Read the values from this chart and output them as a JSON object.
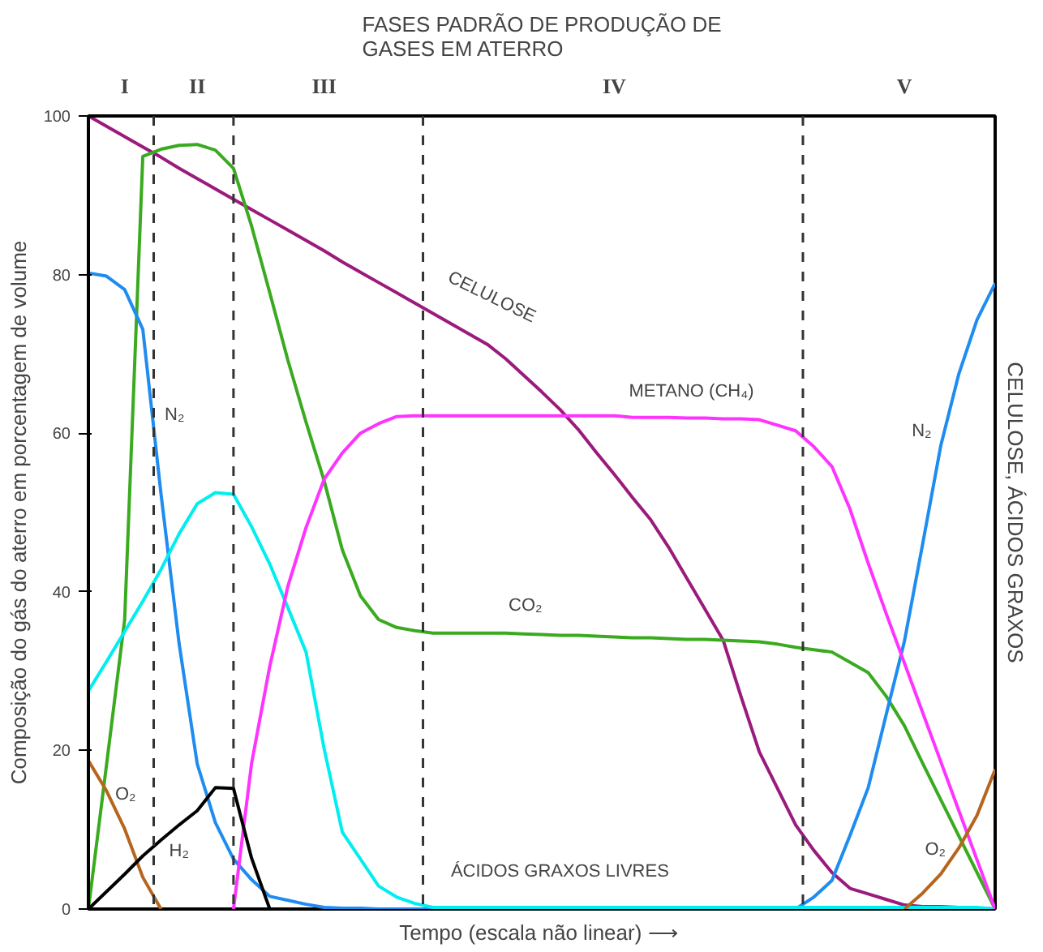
{
  "chart_data": {
    "type": "line",
    "title": "FASES PADRÃO DE PRODUÇÃO DE\nGASES EM ATERRO",
    "xlabel": "Tempo (escala não linear)  ⟶",
    "ylabel": "Composição do gás do aterro em porcentagem de volume",
    "y2label": "CELULOSE, ÁCIDOS GRAXOS",
    "categories": [
      null,
      null,
      "I",
      null,
      null,
      null,
      "II",
      null,
      null,
      null,
      null,
      null,
      null,
      "III",
      null,
      null,
      null,
      null,
      null,
      null,
      null,
      null,
      null,
      null,
      null,
      null,
      null,
      null,
      null,
      "IV",
      null,
      null,
      null,
      null,
      null,
      null,
      null,
      null,
      null,
      null,
      null,
      null,
      null,
      null,
      null,
      "V",
      null,
      null,
      null,
      null,
      null
    ],
    "ylim": [
      0,
      100
    ],
    "yticks": [
      0,
      20,
      40,
      60,
      80,
      100
    ],
    "marker": "none",
    "line_style": "solid",
    "series": [
      {
        "color": "#9b1b7d",
        "values": [
          100,
          98.7,
          97.4,
          96.1,
          94.8,
          93.4,
          92.1,
          90.8,
          89.5,
          88.2,
          86.9,
          85.6,
          84.3,
          83,
          81.6,
          80.3,
          79,
          77.7,
          76.4,
          75.1,
          73.8,
          72.5,
          71.2,
          69.4,
          67.3,
          65.2,
          63,
          60.5,
          57.6,
          54.8,
          51.9,
          49.1,
          45.6,
          41.7,
          37.8,
          33.9,
          26.7,
          19.8,
          15.2,
          10.6,
          7.4,
          4.6,
          2.6,
          1.9,
          1.2,
          0.5,
          0.3,
          0.3,
          0.2,
          0.1,
          0
        ]
      },
      {
        "color": "#3aaa20",
        "values": [
          0,
          18.2,
          36.5,
          94.9,
          95.8,
          96.3,
          96.4,
          95.7,
          93.4,
          86.1,
          77.7,
          69.2,
          61.4,
          54,
          45.3,
          39.5,
          36.5,
          35.5,
          35.1,
          34.8,
          34.8,
          34.8,
          34.8,
          34.8,
          34.7,
          34.6,
          34.5,
          34.5,
          34.4,
          34.3,
          34.2,
          34.2,
          34.1,
          34,
          34,
          33.9,
          33.8,
          33.7,
          33.4,
          33,
          32.7,
          32.4,
          31.1,
          29.8,
          26.8,
          23.1,
          18.4,
          13.8,
          9.2,
          4.6,
          0
        ]
      },
      {
        "color": "#1e8cf0",
        "values": [
          80.2,
          79.8,
          78.1,
          73.1,
          52.4,
          33.5,
          18.3,
          10.9,
          6.3,
          3.7,
          1.6,
          1.1,
          0.6,
          0.2,
          0.1,
          0.1,
          0,
          0,
          0,
          0,
          0,
          0,
          0,
          0,
          0,
          0,
          0,
          0,
          0,
          0,
          0,
          0,
          0,
          0,
          0,
          0,
          0,
          0,
          0,
          0,
          1.5,
          3.6,
          9.3,
          15.3,
          24.6,
          33.8,
          46,
          58.4,
          67.5,
          74.3,
          78.9
        ]
      },
      {
        "color": "#00eef0",
        "values": [
          27.5,
          31.2,
          35,
          38.8,
          42.8,
          47.3,
          51.1,
          52.5,
          52.3,
          48.2,
          43.5,
          38,
          32.4,
          20.2,
          9.7,
          6.3,
          2.9,
          1.5,
          0.7,
          0.2,
          0.2,
          0.2,
          0.2,
          0.2,
          0.2,
          0.2,
          0.2,
          0.2,
          0.2,
          0.2,
          0.2,
          0.2,
          0.2,
          0.2,
          0.2,
          0.2,
          0.2,
          0.2,
          0.2,
          0.2,
          0.2,
          0.2,
          0.2,
          0.2,
          0.2,
          0.2,
          0.2,
          0.2,
          0.2,
          0.2,
          0
        ]
      },
      {
        "color": "#ff33ff",
        "values": [
          null,
          null,
          null,
          null,
          null,
          null,
          null,
          null,
          0,
          18.4,
          30.6,
          40.7,
          48.1,
          54.2,
          57.5,
          60,
          61.2,
          62.1,
          62.2,
          62.2,
          62.2,
          62.2,
          62.2,
          62.2,
          62.2,
          62.2,
          62.2,
          62.2,
          62.2,
          62.2,
          62,
          62,
          62,
          61.9,
          61.9,
          61.8,
          61.8,
          61.7,
          61,
          60.3,
          58.3,
          55.8,
          50.4,
          43.6,
          37.2,
          31,
          24.8,
          18.6,
          12.4,
          6.2,
          0
        ]
      },
      {
        "color": "#b5651d",
        "values": [
          18.7,
          14.9,
          10.1,
          4,
          0,
          null,
          null,
          null,
          null,
          null,
          null,
          null,
          null,
          null,
          null,
          null,
          null,
          null,
          null,
          null,
          null,
          null,
          null,
          null,
          null,
          null,
          null,
          null,
          null,
          null,
          null,
          null,
          null,
          null,
          null,
          null,
          null,
          null,
          null,
          null,
          null,
          null,
          null,
          null,
          null,
          0,
          2,
          4.4,
          7.7,
          11.8,
          17.6
        ]
      },
      {
        "color": "#000000",
        "values": [
          0,
          2.2,
          4.4,
          6.7,
          8.7,
          10.6,
          12.4,
          15.3,
          15.2,
          6.4,
          0,
          null,
          null,
          null,
          null,
          null,
          null,
          null,
          null,
          null,
          null,
          null,
          null,
          null,
          null,
          null,
          null,
          null,
          null,
          null,
          null,
          null,
          null,
          null,
          null,
          null,
          null,
          null,
          null,
          null,
          null,
          null,
          null,
          null,
          null,
          null,
          null,
          null,
          null,
          null,
          null
        ]
      }
    ],
    "annotations": [
      "CELULOSE",
      "METANO (CH₄)",
      "CO₂",
      "N₂",
      "O₂",
      "H₂",
      "ÁCIDOS GRAXOS LIVRES",
      "N₂",
      "O₂"
    ]
  }
}
